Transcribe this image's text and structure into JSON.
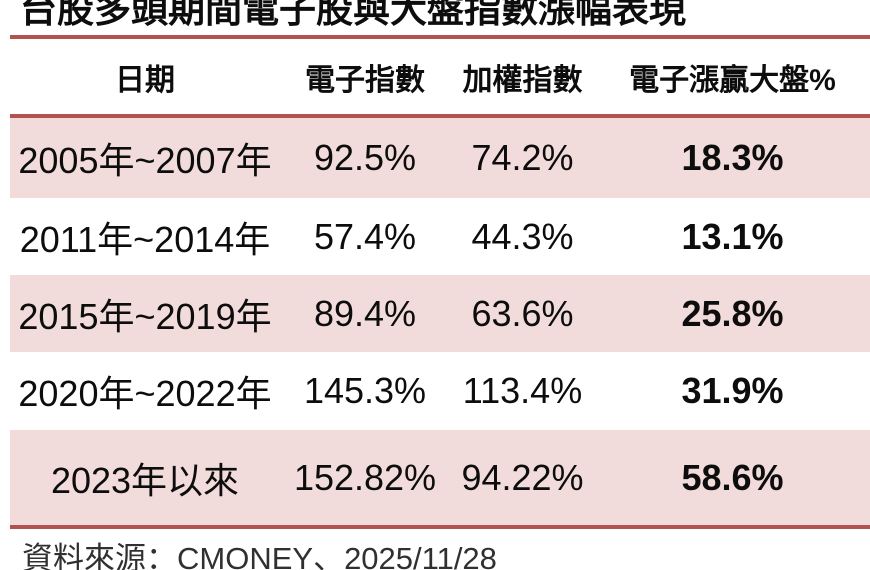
{
  "chart_data": {
    "type": "table",
    "title": "台股多頭期間電子股與大盤指數漲幅表現",
    "columns": [
      "日期",
      "電子指數",
      "加權指數",
      "電子漲贏大盤%"
    ],
    "rows": [
      [
        "2005年~2007年",
        "92.5%",
        "74.2%",
        "18.3%"
      ],
      [
        "2011年~2014年",
        "57.4%",
        "44.3%",
        "13.1%"
      ],
      [
        "2015年~2019年",
        "89.4%",
        "63.6%",
        "25.8%"
      ],
      [
        "2020年~2022年",
        "145.3%",
        "113.4%",
        "31.9%"
      ],
      [
        "2023年以來",
        "152.82%",
        "94.22%",
        "58.6%"
      ]
    ],
    "source": "資料來源：CMONEY、2025/11/28",
    "layout": {
      "banded_rows": true,
      "bold_last_column": true
    }
  },
  "colors": {
    "accent_red": "#b25350",
    "band_pink": "#f2dcdb",
    "text": "#0d0d0d",
    "footer_text": "#303030"
  }
}
